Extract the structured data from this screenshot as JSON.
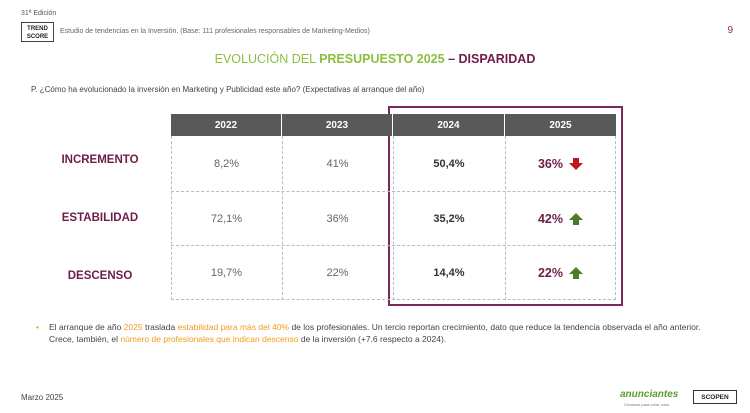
{
  "header": {
    "edition": "31ª Edición",
    "logo_line1": "TREND",
    "logo_line2": "SCORE",
    "study": "Estudio de tendencias en la Inversión. (Base: 111 profesionales responsables de Marketing-Medios)",
    "page": "9"
  },
  "title": {
    "part1": "EVOLUCIÓN DEL ",
    "part2": "PRESUPUESTO 2025",
    "part3": " – DISPARIDAD"
  },
  "question": "P. ¿Cómo ha evolucionado la inversión en Marketing y Publicidad este año? (Expectativas al arranque del año)",
  "table": {
    "columns": [
      "2022",
      "2023",
      "2024",
      "2025"
    ],
    "rows": [
      {
        "label": "INCREMENTO",
        "values": [
          "8,2%",
          "41%",
          "50,4%",
          "36%"
        ],
        "trend": "down"
      },
      {
        "label": "ESTABILIDAD",
        "values": [
          "72,1%",
          "36%",
          "35,2%",
          "42%"
        ],
        "trend": "up"
      },
      {
        "label": "DESCENSO",
        "values": [
          "19,7%",
          "22%",
          "14,4%",
          "22%"
        ],
        "trend": "up"
      }
    ],
    "down_color": "#c0161c",
    "up_color": "#4c7a2c"
  },
  "bullet": {
    "s1": "El arranque de año ",
    "s2": "2025",
    "s3": " traslada ",
    "s4": "estabilidad para más del 40%",
    "s5": " de los profesionales. Un tercio reportan crecimiento, dato que reduce la tendencia observada el año anterior. Crece, también, el ",
    "s6": "número de profesionales que indican descenso",
    "s7": " de la inversión (+7.6 respecto a 2024)."
  },
  "footer": {
    "date": "Marzo 2025",
    "brand1": "anunciantes",
    "brand1_sub": "Creamos para crear valor",
    "brand2": "SCOPEN"
  }
}
